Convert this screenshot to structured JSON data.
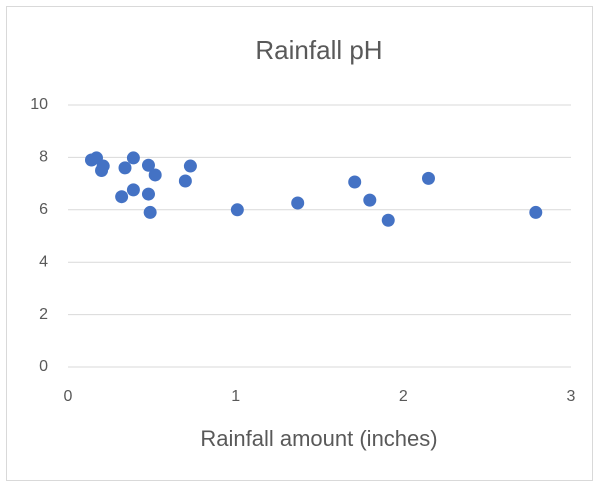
{
  "chart_data": {
    "type": "scatter",
    "title": "Rainfall pH",
    "x_label": "Rainfall amount (inches)",
    "color": "#4472c4",
    "grid": true,
    "xlim": [
      0,
      3
    ],
    "xticks": [
      0,
      1,
      2,
      3
    ],
    "ylim": [
      0,
      10
    ],
    "yticks": [
      0,
      2,
      4,
      6,
      8,
      10
    ],
    "series": [
      {
        "x": [
          0.14,
          0.17,
          0.21,
          0.2,
          0.34,
          0.32,
          0.39,
          0.39,
          0.48,
          0.48,
          0.49,
          0.52,
          0.7,
          0.73,
          1.01,
          1.37,
          1.71,
          1.8,
          1.91,
          2.15,
          2.79
        ],
        "values": [
          7.9,
          7.98,
          7.67,
          7.5,
          7.6,
          6.5,
          7.98,
          6.76,
          7.7,
          6.6,
          5.9,
          7.33,
          7.1,
          7.67,
          6.0,
          6.26,
          7.06,
          6.37,
          5.6,
          7.2,
          5.9
        ]
      }
    ]
  }
}
